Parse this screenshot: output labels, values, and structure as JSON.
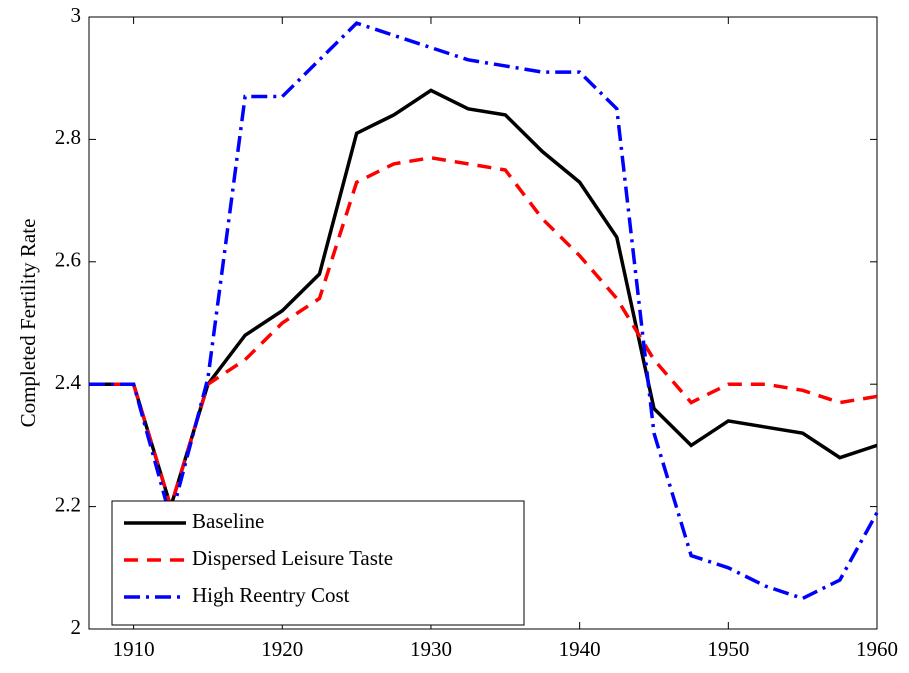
{
  "chart_data": {
    "type": "line",
    "ylabel": "Completed Fertility Rate",
    "x": [
      1907,
      1910,
      1912.5,
      1915,
      1917.5,
      1920,
      1922.5,
      1925,
      1927.5,
      1930,
      1932.5,
      1935,
      1937.5,
      1940,
      1942.5,
      1945,
      1947.5,
      1950,
      1952.5,
      1955,
      1957.5,
      1960
    ],
    "series": [
      {
        "name": "Baseline",
        "color": "#000000",
        "linestyle": "solid",
        "values": [
          2.4,
          2.4,
          2.2,
          2.4,
          2.48,
          2.52,
          2.58,
          2.81,
          2.84,
          2.88,
          2.85,
          2.84,
          2.78,
          2.73,
          2.64,
          2.36,
          2.3,
          2.34,
          2.33,
          2.32,
          2.28,
          2.3
        ]
      },
      {
        "name": "Dispersed Leisure Taste",
        "color": "#ff0000",
        "linestyle": "dashed",
        "values": [
          2.4,
          2.4,
          2.2,
          2.4,
          2.44,
          2.5,
          2.54,
          2.73,
          2.76,
          2.77,
          2.76,
          2.75,
          2.67,
          2.61,
          2.54,
          2.44,
          2.37,
          2.4,
          2.4,
          2.39,
          2.37,
          2.38
        ]
      },
      {
        "name": "High Reentry Cost",
        "color": "#0000ff",
        "linestyle": "dashdot",
        "values": [
          2.4,
          2.4,
          2.18,
          2.41,
          2.87,
          2.87,
          2.93,
          2.99,
          2.97,
          2.95,
          2.93,
          2.92,
          2.91,
          2.91,
          2.85,
          2.32,
          2.12,
          2.1,
          2.07,
          2.05,
          2.08,
          2.19
        ]
      }
    ],
    "xlim": [
      1907,
      1960
    ],
    "xticks": [
      1910,
      1920,
      1930,
      1940,
      1950,
      1960
    ],
    "ylim": [
      2,
      3
    ],
    "yticks": [
      2,
      2.2,
      2.4,
      2.6,
      2.8,
      3
    ],
    "grid": false,
    "legend": "lower left"
  }
}
